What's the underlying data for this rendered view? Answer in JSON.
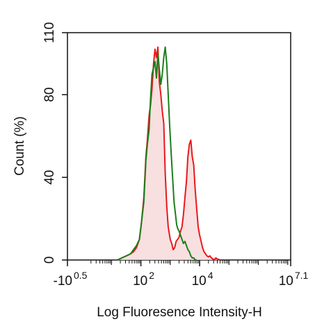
{
  "chart_data": {
    "type": "area",
    "xlabel": "Log Fluoresence Intensity-H",
    "ylabel": "Count  (%)",
    "ylim": [
      0,
      110
    ],
    "xlim": [
      -0.5,
      7.1
    ],
    "x_scale": "log (biexponential)",
    "y_ticks": [
      {
        "value": 0,
        "label": "0"
      },
      {
        "value": 40,
        "label": "40"
      },
      {
        "value": 80,
        "label": "80"
      },
      {
        "value": 110,
        "label": "110"
      }
    ],
    "x_ticks": [
      {
        "value": -0.5,
        "base": "-10",
        "exp": "0.5"
      },
      {
        "value": 2,
        "base": "10",
        "exp": "2"
      },
      {
        "value": 4,
        "base": "10",
        "exp": "4"
      },
      {
        "value": 7.1,
        "base": "10",
        "exp": "7.1"
      }
    ],
    "grid": false,
    "legend": "none",
    "series": [
      {
        "color": "#e8191b",
        "fill": "#f7d9da",
        "x": [
          1.2,
          1.35,
          1.5,
          1.65,
          1.75,
          1.85,
          1.95,
          2.02,
          2.1,
          2.17,
          2.22,
          2.28,
          2.33,
          2.38,
          2.43,
          2.48,
          2.53,
          2.58,
          2.63,
          2.68,
          2.73,
          2.78,
          2.83,
          2.88,
          2.93,
          3.0,
          3.05,
          3.1,
          3.15,
          3.2,
          3.25,
          3.3,
          3.35,
          3.4,
          3.45,
          3.5,
          3.55,
          3.6,
          3.65,
          3.7,
          3.75,
          3.8,
          3.85,
          3.9,
          3.95,
          4.0,
          4.05,
          4.1,
          4.15,
          4.2,
          4.25,
          4.3,
          4.35,
          4.4,
          4.45,
          4.5,
          4.55,
          4.6,
          4.7
        ],
        "y": [
          0,
          1,
          2,
          3,
          4,
          6,
          10,
          18,
          30,
          50,
          58,
          70,
          75,
          83,
          95,
          102,
          98,
          103,
          86,
          80,
          72,
          66,
          42,
          26,
          16,
          10,
          8,
          5,
          6,
          9,
          10,
          11,
          14,
          16,
          22,
          30,
          38,
          50,
          56,
          58,
          50,
          46,
          34,
          25,
          16,
          12,
          9,
          6,
          4,
          3,
          2,
          1.5,
          2,
          1,
          0.5,
          0,
          1,
          0.5,
          0
        ]
      },
      {
        "color": "#1a7f1a",
        "fill": "none",
        "x": [
          1.2,
          1.35,
          1.5,
          1.65,
          1.75,
          1.85,
          1.95,
          2.02,
          2.1,
          2.17,
          2.22,
          2.28,
          2.33,
          2.38,
          2.43,
          2.48,
          2.53,
          2.58,
          2.63,
          2.68,
          2.73,
          2.78,
          2.83,
          2.88,
          2.93,
          2.98,
          3.03,
          3.08,
          3.13,
          3.18,
          3.22,
          3.26,
          3.3,
          3.35,
          3.4,
          3.45,
          3.5,
          3.55,
          3.6,
          3.65,
          3.7,
          3.75,
          3.8,
          3.85,
          3.9
        ],
        "y": [
          0,
          1,
          2,
          3,
          5,
          7,
          10,
          18,
          28,
          48,
          56,
          63,
          78,
          90,
          93,
          96,
          88,
          100,
          92,
          85,
          90,
          98,
          103,
          95,
          80,
          65,
          52,
          40,
          28,
          22,
          17,
          15,
          14,
          12,
          10,
          8,
          9,
          7,
          5,
          4,
          2,
          1,
          1,
          0,
          0
        ]
      }
    ]
  }
}
